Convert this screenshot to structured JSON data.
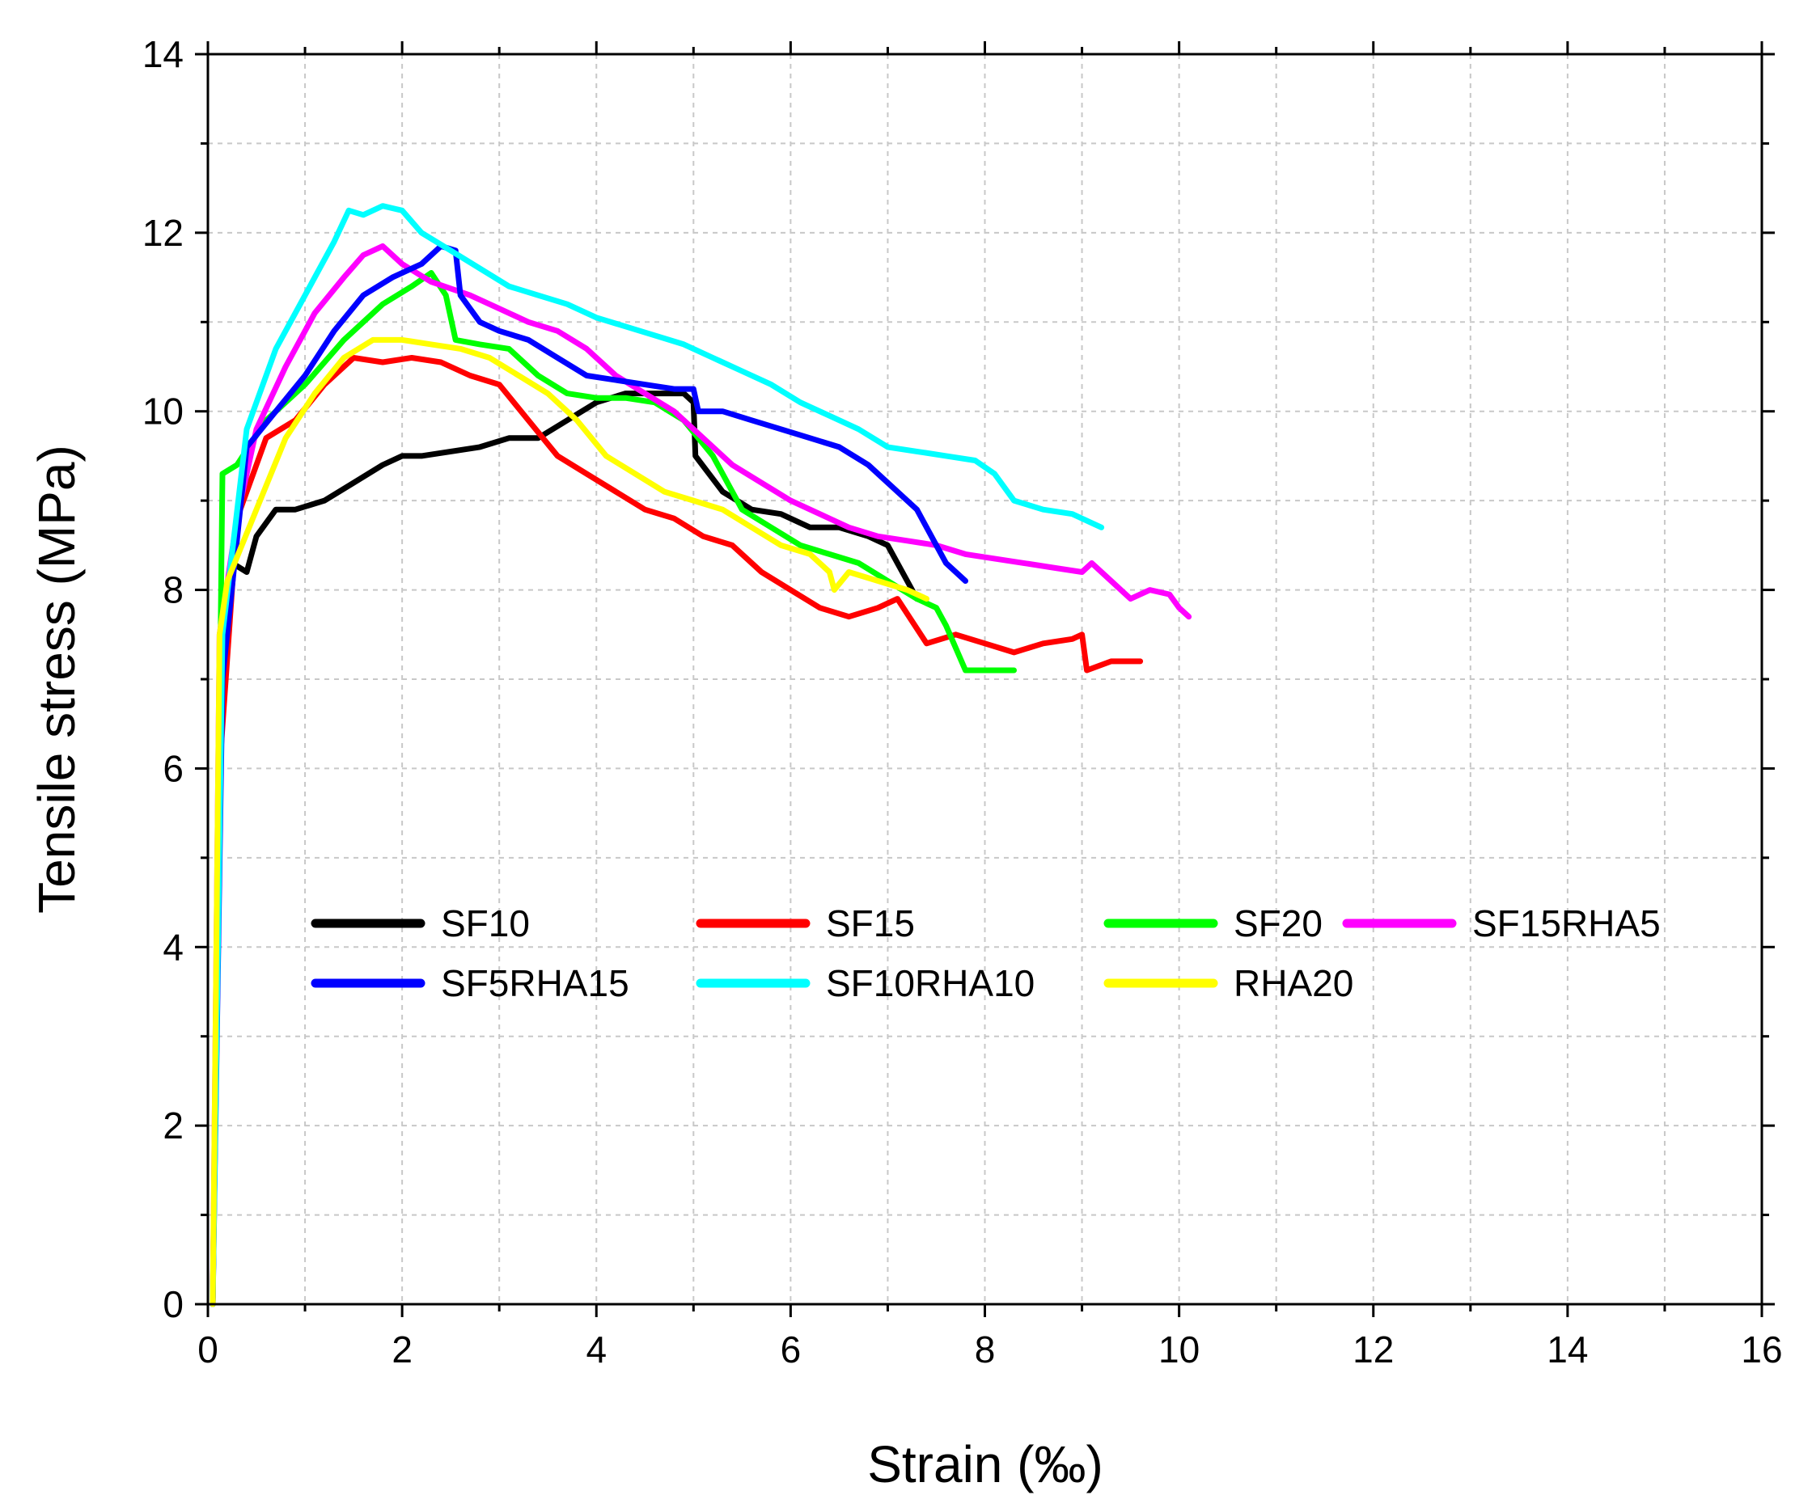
{
  "chart_data": {
    "type": "line",
    "xlabel": "Strain (‰)",
    "ylabel": "Tensile stress (MPa)",
    "xlim": [
      0,
      16
    ],
    "ylim": [
      0,
      14
    ],
    "xticks": [
      0,
      2,
      4,
      6,
      8,
      10,
      12,
      14,
      16
    ],
    "yticks": [
      0,
      2,
      4,
      6,
      8,
      10,
      12,
      14
    ],
    "xtick_labels": [
      "0",
      "2",
      "4",
      "6",
      "8",
      "10",
      "12",
      "14",
      "16"
    ],
    "ytick_labels": [
      "0",
      "2",
      "4",
      "6",
      "8",
      "10",
      "12",
      "14"
    ],
    "minor_x_step": 1,
    "minor_y_step": 1,
    "grid": true,
    "legend_position": "lower-center",
    "series": [
      {
        "name": "SF10",
        "color": "#000000",
        "x": [
          0.05,
          0.12,
          0.25,
          0.4,
          0.5,
          0.7,
          0.9,
          1.2,
          1.5,
          1.8,
          2.0,
          2.2,
          2.5,
          2.8,
          3.1,
          3.4,
          3.7,
          4.0,
          4.3,
          4.6,
          4.9,
          5.0,
          5.02,
          5.3,
          5.6,
          5.9,
          6.2,
          6.5,
          6.8,
          7.0,
          7.2,
          7.3
        ],
        "y": [
          0.0,
          6.5,
          8.3,
          8.2,
          8.6,
          8.9,
          8.9,
          9.0,
          9.2,
          9.4,
          9.5,
          9.5,
          9.55,
          9.6,
          9.7,
          9.7,
          9.9,
          10.1,
          10.2,
          10.2,
          10.2,
          10.1,
          9.5,
          9.1,
          8.9,
          8.85,
          8.7,
          8.7,
          8.6,
          8.5,
          8.1,
          7.9
        ]
      },
      {
        "name": "SF15",
        "color": "#ff0000",
        "x": [
          0.05,
          0.12,
          0.3,
          0.6,
          0.9,
          1.2,
          1.5,
          1.8,
          2.1,
          2.4,
          2.7,
          3.0,
          3.3,
          3.6,
          3.9,
          4.2,
          4.5,
          4.8,
          5.1,
          5.4,
          5.7,
          6.0,
          6.3,
          6.6,
          6.9,
          7.1,
          7.4,
          7.7,
          8.0,
          8.3,
          8.6,
          8.9,
          9.0,
          9.05,
          9.3,
          9.6
        ],
        "y": [
          0.0,
          6.0,
          8.8,
          9.7,
          9.9,
          10.3,
          10.6,
          10.55,
          10.6,
          10.55,
          10.4,
          10.3,
          9.9,
          9.5,
          9.3,
          9.1,
          8.9,
          8.8,
          8.6,
          8.5,
          8.2,
          8.0,
          7.8,
          7.7,
          7.8,
          7.9,
          7.4,
          7.5,
          7.4,
          7.3,
          7.4,
          7.45,
          7.5,
          7.1,
          7.2,
          7.2
        ]
      },
      {
        "name": "SF20",
        "color": "#00ff00",
        "x": [
          0.05,
          0.12,
          0.15,
          0.3,
          0.6,
          1.0,
          1.4,
          1.8,
          2.1,
          2.3,
          2.45,
          2.55,
          2.8,
          3.1,
          3.4,
          3.7,
          4.0,
          4.3,
          4.6,
          4.9,
          5.2,
          5.5,
          5.8,
          6.1,
          6.4,
          6.7,
          7.0,
          7.3,
          7.5,
          7.6,
          7.8,
          8.0,
          8.2,
          8.3
        ],
        "y": [
          0.0,
          6.5,
          9.3,
          9.4,
          9.9,
          10.3,
          10.8,
          11.2,
          11.4,
          11.55,
          11.3,
          10.8,
          10.75,
          10.7,
          10.4,
          10.2,
          10.15,
          10.15,
          10.1,
          9.9,
          9.5,
          8.9,
          8.7,
          8.5,
          8.4,
          8.3,
          8.1,
          7.9,
          7.8,
          7.6,
          7.1,
          7.1,
          7.1,
          7.1
        ]
      },
      {
        "name": "SF15RHA5",
        "color": "#ff00ff",
        "x": [
          0.05,
          0.12,
          0.3,
          0.5,
          0.8,
          1.1,
          1.4,
          1.6,
          1.8,
          2.0,
          2.3,
          2.7,
          3.0,
          3.3,
          3.6,
          3.9,
          4.2,
          4.5,
          4.8,
          5.1,
          5.4,
          5.7,
          6.0,
          6.3,
          6.6,
          6.9,
          7.2,
          7.5,
          7.8,
          8.1,
          8.4,
          8.7,
          9.0,
          9.1,
          9.3,
          9.5,
          9.7,
          9.9,
          10.0,
          10.1
        ],
        "y": [
          0.0,
          7.5,
          8.8,
          9.8,
          10.5,
          11.1,
          11.5,
          11.75,
          11.85,
          11.65,
          11.45,
          11.3,
          11.15,
          11.0,
          10.9,
          10.7,
          10.4,
          10.2,
          10.0,
          9.7,
          9.4,
          9.2,
          9.0,
          8.85,
          8.7,
          8.6,
          8.55,
          8.5,
          8.4,
          8.35,
          8.3,
          8.25,
          8.2,
          8.3,
          8.1,
          7.9,
          8.0,
          7.95,
          7.8,
          7.7
        ]
      },
      {
        "name": "SF5RHA15",
        "color": "#0000ff",
        "x": [
          0.05,
          0.15,
          0.4,
          0.7,
          1.0,
          1.3,
          1.6,
          1.9,
          2.2,
          2.4,
          2.55,
          2.6,
          2.8,
          3.0,
          3.3,
          3.6,
          3.9,
          4.2,
          4.5,
          4.8,
          5.0,
          5.05,
          5.3,
          5.6,
          5.9,
          6.2,
          6.5,
          6.8,
          7.1,
          7.3,
          7.5,
          7.6,
          7.8
        ],
        "y": [
          0.0,
          7.0,
          9.6,
          10.0,
          10.4,
          10.9,
          11.3,
          11.5,
          11.65,
          11.85,
          11.8,
          11.3,
          11.0,
          10.9,
          10.8,
          10.6,
          10.4,
          10.35,
          10.3,
          10.25,
          10.25,
          10.0,
          10.0,
          9.9,
          9.8,
          9.7,
          9.6,
          9.4,
          9.1,
          8.9,
          8.5,
          8.3,
          8.1
        ]
      },
      {
        "name": "SF10RHA10",
        "color": "#00ffff",
        "x": [
          0.05,
          0.15,
          0.4,
          0.7,
          1.0,
          1.3,
          1.45,
          1.6,
          1.8,
          2.0,
          2.2,
          2.5,
          2.8,
          3.1,
          3.4,
          3.7,
          4.0,
          4.3,
          4.6,
          4.9,
          5.2,
          5.5,
          5.8,
          6.1,
          6.4,
          6.7,
          7.0,
          7.3,
          7.6,
          7.9,
          8.1,
          8.3,
          8.6,
          8.9,
          9.1,
          9.2
        ],
        "y": [
          0.0,
          7.5,
          9.8,
          10.7,
          11.3,
          11.9,
          12.25,
          12.2,
          12.3,
          12.25,
          12.0,
          11.8,
          11.6,
          11.4,
          11.3,
          11.2,
          11.05,
          10.95,
          10.85,
          10.75,
          10.6,
          10.45,
          10.3,
          10.1,
          9.95,
          9.8,
          9.6,
          9.55,
          9.5,
          9.45,
          9.3,
          9.0,
          8.9,
          8.85,
          8.75,
          8.7
        ]
      },
      {
        "name": "RHA20",
        "color": "#ffff00",
        "x": [
          0.05,
          0.12,
          0.2,
          0.5,
          0.8,
          1.1,
          1.4,
          1.7,
          2.0,
          2.3,
          2.6,
          2.9,
          3.2,
          3.5,
          3.8,
          4.1,
          4.4,
          4.7,
          5.0,
          5.3,
          5.6,
          5.9,
          6.2,
          6.4,
          6.45,
          6.6,
          6.9,
          7.2,
          7.4
        ],
        "y": [
          0.0,
          7.5,
          8.1,
          8.9,
          9.7,
          10.2,
          10.6,
          10.8,
          10.8,
          10.75,
          10.7,
          10.6,
          10.4,
          10.2,
          9.9,
          9.5,
          9.3,
          9.1,
          9.0,
          8.9,
          8.7,
          8.5,
          8.4,
          8.2,
          8.0,
          8.2,
          8.1,
          8.0,
          7.9
        ]
      }
    ]
  }
}
